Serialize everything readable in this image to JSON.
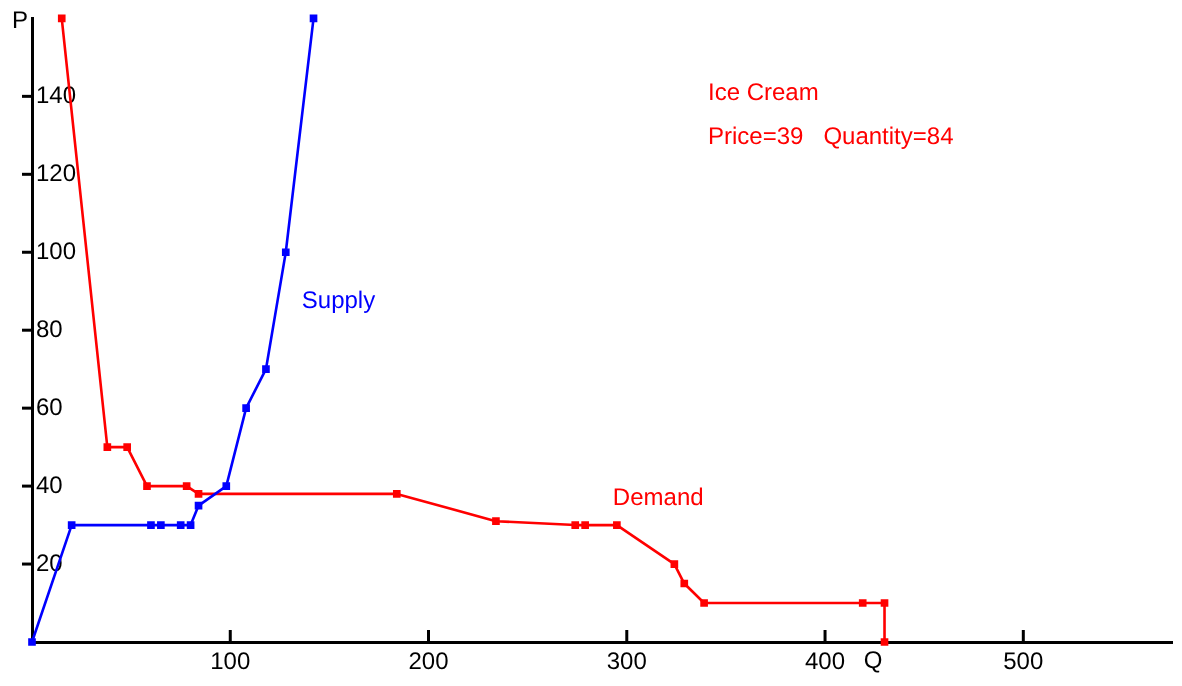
{
  "chart_data": {
    "type": "line",
    "title": "Ice Cream",
    "xlabel": "Q",
    "ylabel": "P",
    "annotations": [
      "Price=39   Quantity=84"
    ],
    "xlim": [
      0,
      575
    ],
    "xticks": [
      100,
      200,
      300,
      400,
      500
    ],
    "ylim": [
      0,
      160
    ],
    "yticks": [
      20,
      40,
      60,
      80,
      100,
      120,
      140
    ],
    "grid": false,
    "legend": false,
    "marker": "square",
    "line_style": "solid",
    "series": [
      {
        "name": "Supply",
        "color": "#0000ff",
        "x": [
          0,
          20,
          60,
          65,
          75,
          80,
          84,
          98,
          108,
          118,
          128,
          142
        ],
        "values": [
          0,
          30,
          30,
          30,
          30,
          30,
          35,
          40,
          60,
          70,
          100,
          160
        ]
      },
      {
        "name": "Demand",
        "color": "#ff0000",
        "x": [
          15,
          38,
          48,
          58,
          78,
          84,
          184,
          234,
          274,
          279,
          295,
          324,
          329,
          339,
          419,
          430,
          430
        ],
        "values": [
          160,
          50,
          50,
          40,
          40,
          38,
          38,
          31,
          30,
          30,
          30,
          20,
          15,
          10,
          10,
          10,
          0
        ]
      }
    ]
  }
}
